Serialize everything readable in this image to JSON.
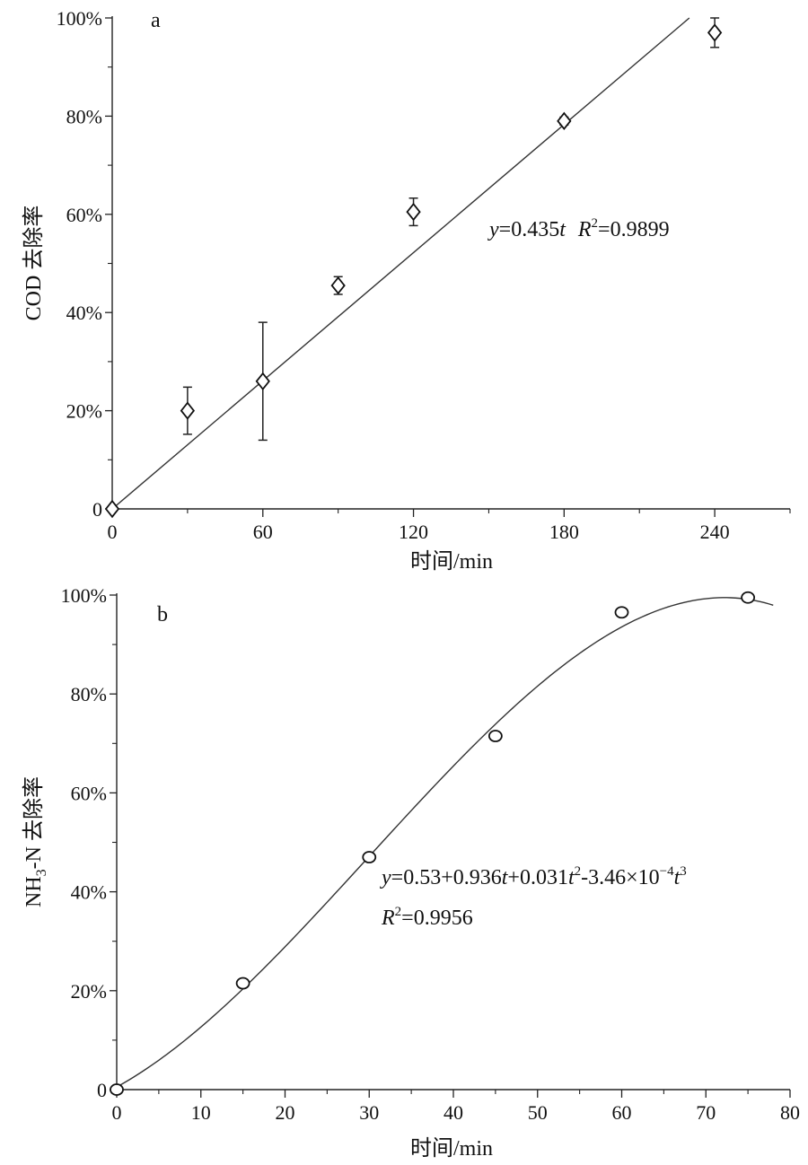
{
  "figure": {
    "chart_data": [
      {
        "type": "scatter",
        "panel_label": "a",
        "xlabel": "时间/min",
        "ylabel": "COD 去除率",
        "xlim": [
          0,
          270
        ],
        "ylim": [
          0,
          100
        ],
        "x_ticks": [
          0,
          60,
          120,
          180,
          240
        ],
        "x_tick_labels": [
          "0",
          "60",
          "120",
          "180",
          "240"
        ],
        "y_ticks": [
          0,
          20,
          40,
          60,
          80,
          100
        ],
        "y_tick_labels": [
          "0",
          "20%",
          "40%",
          "60%",
          "80%",
          "100%"
        ],
        "marker": "diamond",
        "points": [
          {
            "x": 0,
            "y": 0,
            "err": 0
          },
          {
            "x": 30,
            "y": 20,
            "err": 4.8
          },
          {
            "x": 60,
            "y": 26,
            "err": 12
          },
          {
            "x": 90,
            "y": 45.5,
            "err": 1.8
          },
          {
            "x": 120,
            "y": 60.5,
            "err": 2.8
          },
          {
            "x": 180,
            "y": 79,
            "err": 0.8
          },
          {
            "x": 240,
            "y": 97,
            "err": 3
          }
        ],
        "fit": {
          "type": "linear",
          "slope": 0.435
        },
        "equation": {
          "y_italic": "y",
          "text_a": "=0.435",
          "t_italic": "t",
          "r_italic": "R",
          "sup": "2",
          "text_b": "=0.9899"
        },
        "grid": false
      },
      {
        "type": "scatter",
        "panel_label": "b",
        "xlabel": "时间/min",
        "ylabel_main": "NH",
        "ylabel_sub": "3",
        "ylabel_rest": "-N 去除率",
        "xlim": [
          0,
          80
        ],
        "ylim": [
          0,
          100
        ],
        "x_ticks": [
          0,
          10,
          20,
          30,
          40,
          50,
          60,
          70,
          80
        ],
        "x_tick_labels": [
          "0",
          "10",
          "20",
          "30",
          "40",
          "50",
          "60",
          "70",
          "80"
        ],
        "y_ticks": [
          0,
          20,
          40,
          60,
          80,
          100
        ],
        "y_tick_labels": [
          "0",
          "20%",
          "40%",
          "60%",
          "80%",
          "100%"
        ],
        "marker": "circle",
        "points": [
          {
            "x": 0,
            "y": 0
          },
          {
            "x": 15,
            "y": 21.5
          },
          {
            "x": 30,
            "y": 47
          },
          {
            "x": 45,
            "y": 71.5
          },
          {
            "x": 60,
            "y": 96.5
          },
          {
            "x": 75,
            "y": 99.5
          }
        ],
        "fit": {
          "type": "cubic",
          "coefficients": [
            0.53,
            0.936,
            0.031,
            -0.000346
          ]
        },
        "equation": {
          "y_italic": "y",
          "part1": "=0.53+0.936",
          "t1": "t",
          "part2": "+0.031",
          "t2": "t",
          "sup2": "2",
          "part3": "-3.46×10",
          "sup_neg4": "−4",
          "t3": "t",
          "sup3": "3",
          "r_italic": "R",
          "r_sup": "2",
          "r_value": "=0.9956"
        },
        "grid": false
      }
    ]
  }
}
